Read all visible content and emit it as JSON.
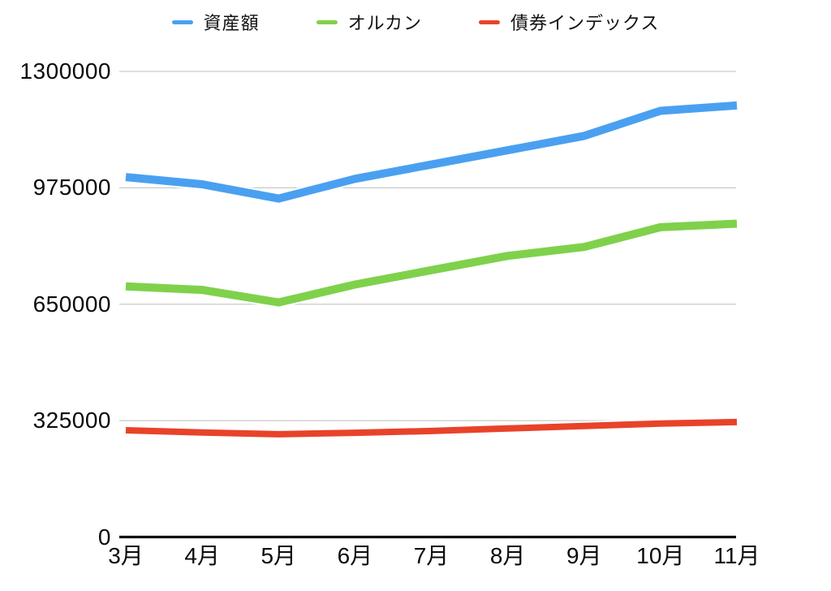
{
  "chart_data": {
    "type": "line",
    "title": "",
    "categories": [
      "3月",
      "4月",
      "5月",
      "6月",
      "7月",
      "8月",
      "9月",
      "10月",
      "11月"
    ],
    "series": [
      {
        "name": "資産額",
        "color": "#4AA0F0",
        "stroke_width": 10,
        "values": [
          1005000,
          985000,
          945000,
          1000000,
          1040000,
          1080000,
          1120000,
          1190000,
          1205000
        ]
      },
      {
        "name": "オルカン",
        "color": "#7FD14B",
        "stroke_width": 10,
        "values": [
          700000,
          690000,
          655000,
          705000,
          745000,
          785000,
          810000,
          865000,
          875000
        ]
      },
      {
        "name": "債券インデックス",
        "color": "#E8432A",
        "stroke_width": 8,
        "values": [
          298000,
          292000,
          287000,
          291000,
          296000,
          303000,
          310000,
          317000,
          321000
        ]
      }
    ],
    "xlabel": "",
    "ylabel": "",
    "ylim": [
      0,
      1300000
    ],
    "yticks": [
      0,
      325000,
      650000,
      975000,
      1300000
    ],
    "grid": "horizontal",
    "gridline_color": "#C9C9C9",
    "axis_color": "#111111",
    "legend_position": "top"
  }
}
